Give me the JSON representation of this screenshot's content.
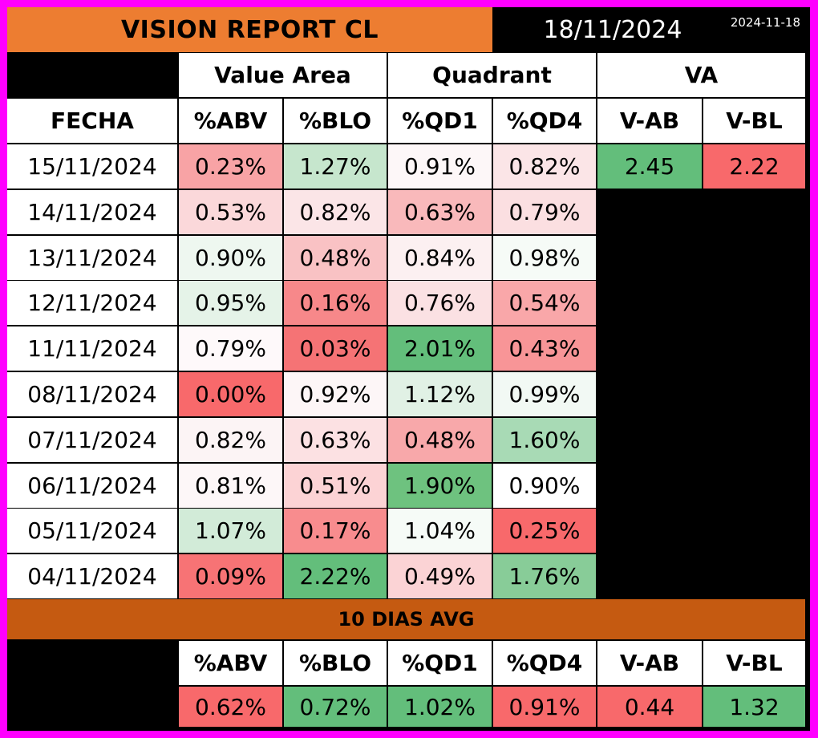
{
  "title": "VISION REPORT CL",
  "report_date": "18/11/2024",
  "timestamp": "2024-11-18",
  "groups": {
    "value_area": "Value Area",
    "quadrant": "Quadrant",
    "va": "VA"
  },
  "columns": {
    "fecha": "FECHA",
    "abv": "%ABV",
    "blo": "%BLO",
    "qd1": "%QD1",
    "qd4": "%QD4",
    "vab": "V-AB",
    "vbl": "V-BL"
  },
  "rows": [
    {
      "date": "15/11/2024",
      "abv": "0.23%",
      "blo": "1.27%",
      "qd1": "0.91%",
      "qd4": "0.82%"
    },
    {
      "date": "14/11/2024",
      "abv": "0.53%",
      "blo": "0.82%",
      "qd1": "0.63%",
      "qd4": "0.79%"
    },
    {
      "date": "13/11/2024",
      "abv": "0.90%",
      "blo": "0.48%",
      "qd1": "0.84%",
      "qd4": "0.98%"
    },
    {
      "date": "12/11/2024",
      "abv": "0.95%",
      "blo": "0.16%",
      "qd1": "0.76%",
      "qd4": "0.54%"
    },
    {
      "date": "11/11/2024",
      "abv": "0.79%",
      "blo": "0.03%",
      "qd1": "2.01%",
      "qd4": "0.43%"
    },
    {
      "date": "08/11/2024",
      "abv": "0.00%",
      "blo": "0.92%",
      "qd1": "1.12%",
      "qd4": "0.99%"
    },
    {
      "date": "07/11/2024",
      "abv": "0.82%",
      "blo": "0.63%",
      "qd1": "0.48%",
      "qd4": "1.60%"
    },
    {
      "date": "06/11/2024",
      "abv": "0.81%",
      "blo": "0.51%",
      "qd1": "1.90%",
      "qd4": "0.90%"
    },
    {
      "date": "05/11/2024",
      "abv": "1.07%",
      "blo": "0.17%",
      "qd1": "1.04%",
      "qd4": "0.25%"
    },
    {
      "date": "04/11/2024",
      "abv": "0.09%",
      "blo": "2.22%",
      "qd1": "0.49%",
      "qd4": "1.76%"
    }
  ],
  "row_colors": [
    {
      "abv": "#f8a3a5",
      "blo": "#c6e6cd",
      "qd1": "#fdf7f8",
      "qd4": "#fbe5e7"
    },
    {
      "abv": "#fbd8da",
      "blo": "#fbe5e7",
      "qd1": "#f9b9bb",
      "qd4": "#fbdfe1"
    },
    {
      "abv": "#eef7f0",
      "blo": "#f9c2c4",
      "qd1": "#fcf0f1",
      "qd4": "#f6fbf7"
    },
    {
      "abv": "#e5f3e8",
      "blo": "#f7888a",
      "qd1": "#fbe1e3",
      "qd4": "#f9a7a9"
    },
    {
      "abv": "#fef9fa",
      "blo": "#f57375",
      "qd1": "#63be7b",
      "qd4": "#f89597"
    },
    {
      "abv": "#f8696b",
      "blo": "#fdf6f7",
      "qd1": "#e1f1e5",
      "qd4": "#f2f9f4"
    },
    {
      "abv": "#fcf4f5",
      "blo": "#fce1e3",
      "qd1": "#f8a8aa",
      "qd4": "#a8dab5"
    },
    {
      "abv": "#fdf7f8",
      "blo": "#fcd3d5",
      "qd1": "#6ec27f",
      "qd4": "#ffffff"
    },
    {
      "abv": "#d2ebd8",
      "blo": "#f88c8e",
      "qd1": "#f6fbf7",
      "qd4": "#f8696b"
    },
    {
      "abv": "#f77375",
      "blo": "#63be7b",
      "qd1": "#fbd3d5",
      "qd4": "#88cc98"
    }
  ],
  "va": {
    "vab": "2.45",
    "vbl": "2.22",
    "vab_color": "#63be7b",
    "vbl_color": "#f8696b"
  },
  "avg": {
    "title": "10 DIAS AVG",
    "abv": "0.62%",
    "blo": "0.72%",
    "qd1": "1.02%",
    "qd4": "0.91%",
    "vab": "0.44",
    "vbl": "1.32",
    "colors": {
      "abv": "#f8696b",
      "blo": "#63be7b",
      "qd1": "#63be7b",
      "qd4": "#f8696b",
      "vab": "#f8696b",
      "vbl": "#63be7b"
    }
  }
}
